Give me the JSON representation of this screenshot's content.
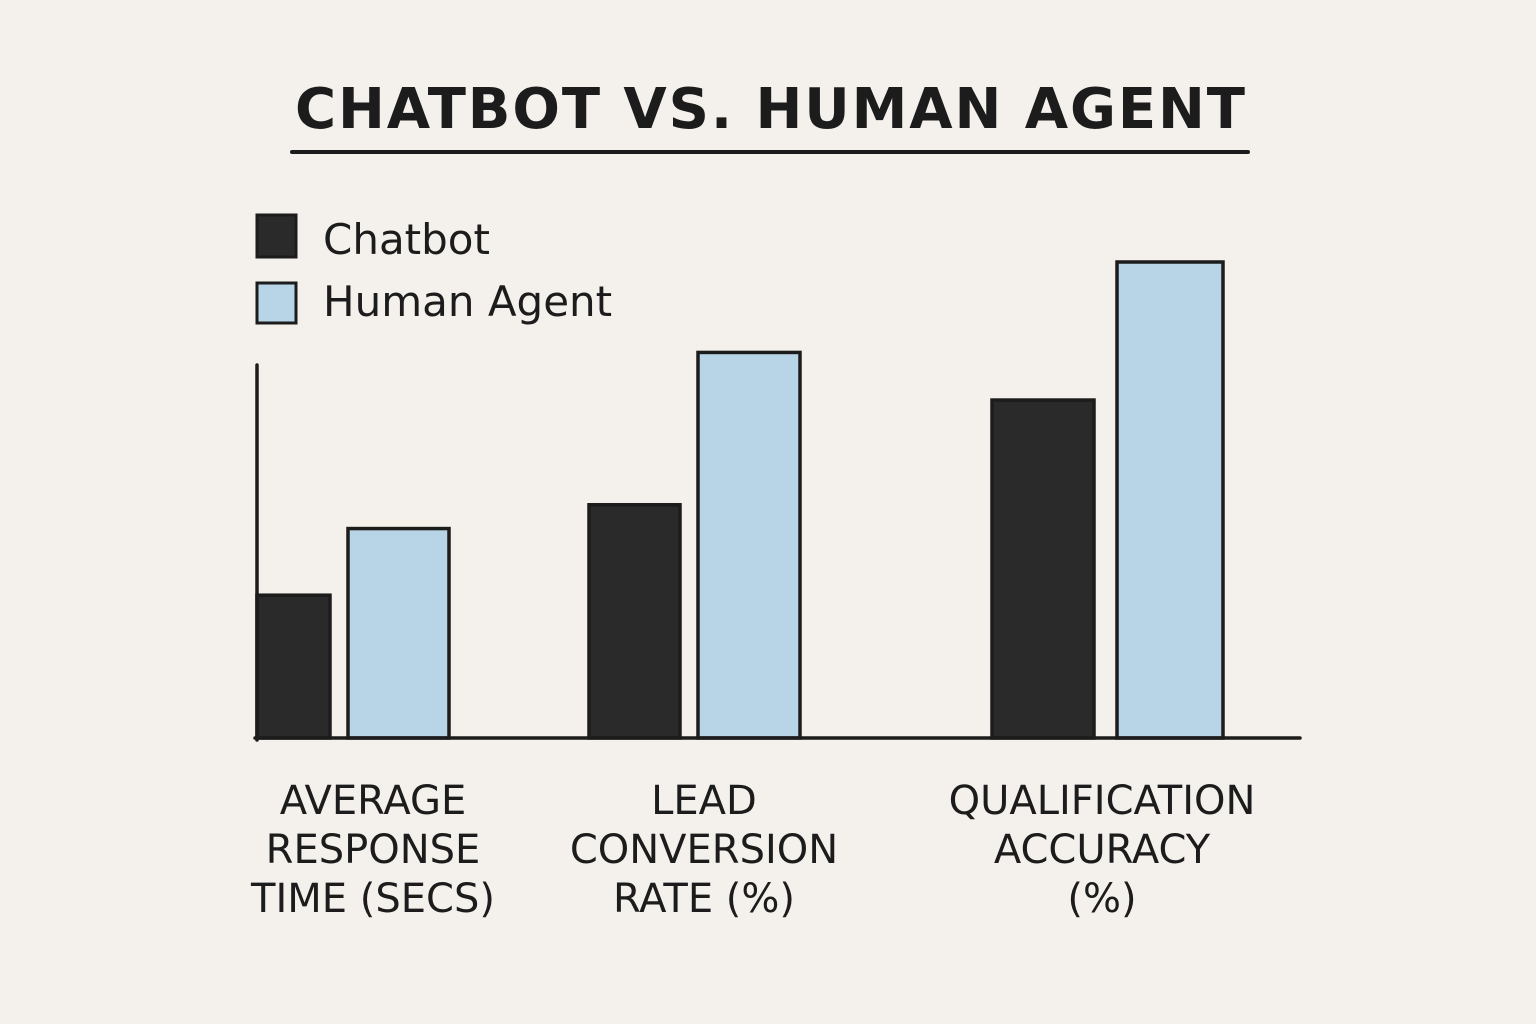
{
  "chart_data": {
    "type": "bar",
    "title": "CHATBOT VS. HUMAN AGENT",
    "categories": [
      "AVERAGE\nRESPONSE\nTIME (SECS)",
      "LEAD\nCONVERSION\nRATE (%)",
      "QUALIFICATION\nACCURACY\n(%)"
    ],
    "series": [
      {
        "name": "Chatbot",
        "color": "#2a2a2a",
        "values": [
          30,
          49,
          71
        ]
      },
      {
        "name": "Human Agent",
        "color": "#b8d5e7",
        "values": [
          44,
          81,
          100
        ]
      }
    ],
    "xlabel": "",
    "ylabel": "",
    "ylim": [
      0,
      100
    ],
    "grid": false,
    "legend": "top-left"
  }
}
